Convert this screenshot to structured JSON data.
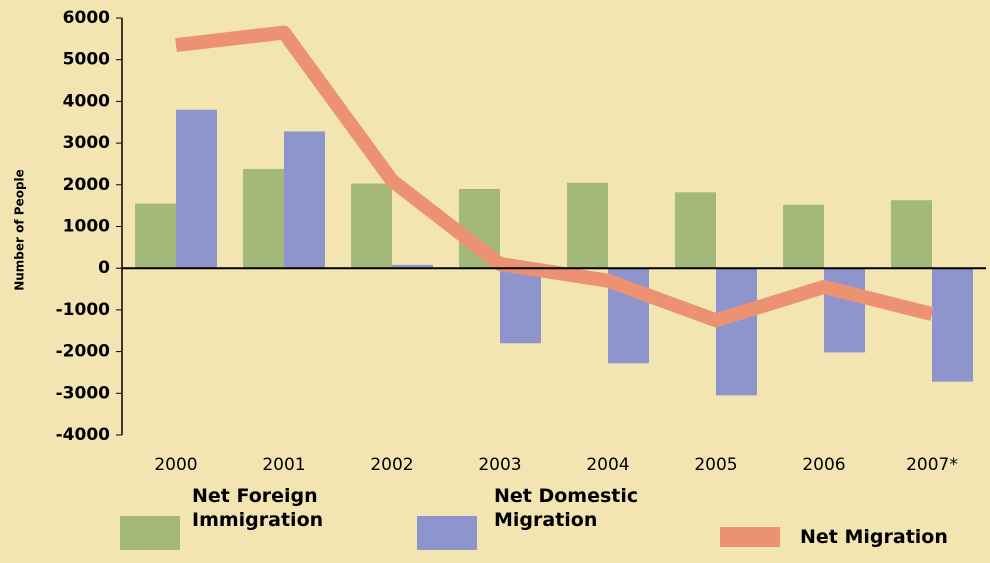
{
  "chart_data": {
    "type": "bar",
    "y_label": "Number of People",
    "categories": [
      "2000",
      "2001",
      "2002",
      "2003",
      "2004",
      "2005",
      "2006",
      "2007*"
    ],
    "series": [
      {
        "name": "Net Foreign Immigration",
        "color": "#a3b879",
        "type": "bar",
        "values": [
          1550,
          2380,
          2030,
          1900,
          2050,
          1820,
          1520,
          1630
        ]
      },
      {
        "name": "Net Domestic Migration",
        "color": "#8e94cc",
        "type": "bar",
        "values": [
          3800,
          3280,
          80,
          -1800,
          -2280,
          -3050,
          -2020,
          -2720
        ]
      },
      {
        "name": "Net Migration",
        "color": "#ec9273",
        "type": "line",
        "values": [
          5350,
          5650,
          2100,
          100,
          -300,
          -1250,
          -450,
          -1100
        ]
      }
    ],
    "ylim": [
      -4000,
      6000
    ],
    "yticks": [
      -4000,
      -3000,
      -2000,
      -1000,
      0,
      1000,
      2000,
      3000,
      4000,
      5000,
      6000
    ],
    "grid": false,
    "legend": "bottom"
  }
}
